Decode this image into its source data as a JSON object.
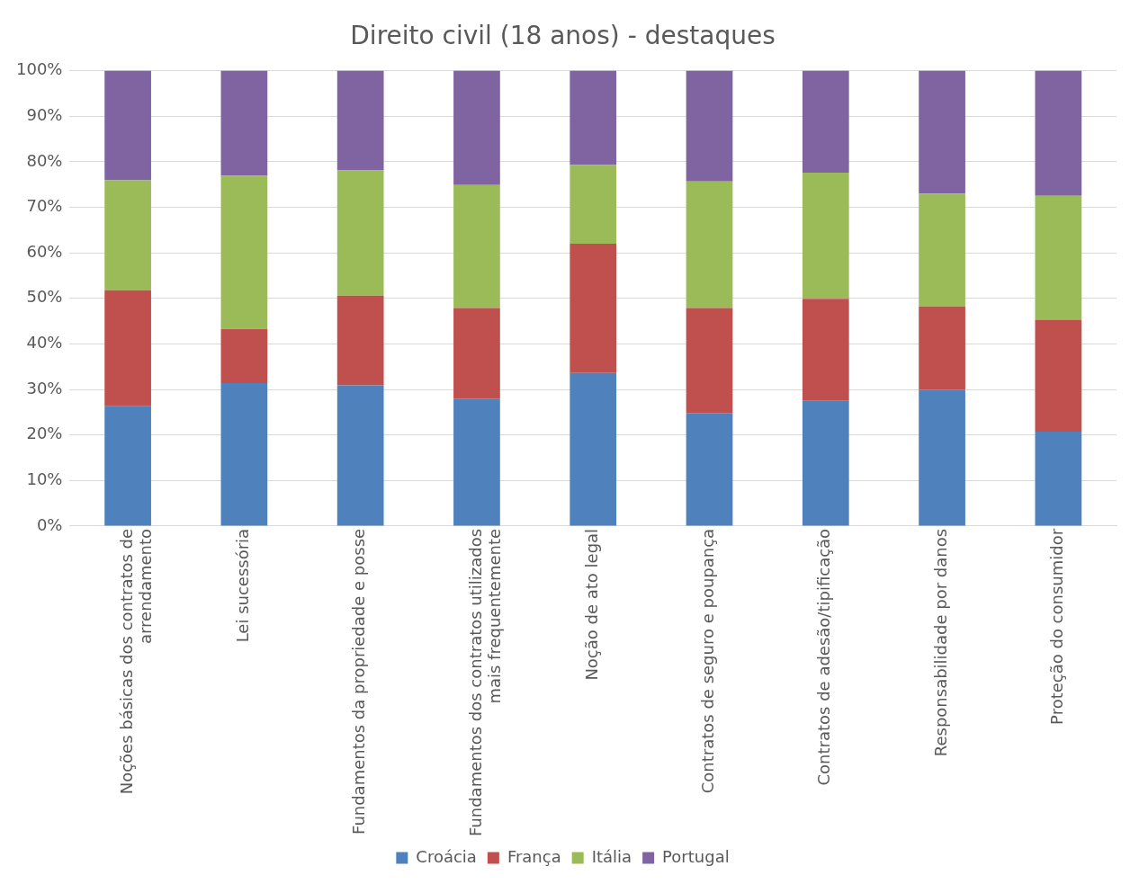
{
  "chart_data": {
    "type": "bar",
    "title": "Direito civil (18 anos) - destaques",
    "categories": [
      "Noções básicas dos contratos de arrendamento",
      "Lei sucessória",
      "Fundamentos da propriedade e posse",
      "Fundamentos dos contratos utilizados mais frequentemente",
      "Noção de ato legal",
      "Contratos de seguro e poupança",
      "Contratos de adesão/tipificação",
      "Responsabilidade por danos",
      "Proteção do consumidor"
    ],
    "series": [
      {
        "name": "Croácia",
        "color": "#4f81bd",
        "values": [
          26.3,
          31.4,
          30.9,
          28,
          33.6,
          24.8,
          27.5,
          29.9,
          20.7
        ]
      },
      {
        "name": "França",
        "color": "#c0504d",
        "values": [
          25.5,
          11.9,
          19.7,
          19.9,
          28.4,
          23.1,
          22.4,
          18.3,
          24.6
        ]
      },
      {
        "name": "Itália",
        "color": "#9bbb59",
        "values": [
          24.1,
          33.6,
          27.5,
          27,
          17.3,
          27.8,
          27.7,
          24.8,
          27.2
        ]
      },
      {
        "name": "Portugal",
        "color": "#8064a2",
        "values": [
          24.1,
          23.1,
          21.9,
          25.1,
          20.7,
          24.3,
          22.4,
          27,
          27.5
        ]
      }
    ],
    "stacked": true,
    "ylim": [
      0,
      100
    ],
    "yticks": [
      {
        "value": 0,
        "label": "0%"
      },
      {
        "value": 10,
        "label": "10%"
      },
      {
        "value": 20,
        "label": "20%"
      },
      {
        "value": 30,
        "label": "30%"
      },
      {
        "value": 40,
        "label": "40%"
      },
      {
        "value": 50,
        "label": "50%"
      },
      {
        "value": 60,
        "label": "60%"
      },
      {
        "value": 70,
        "label": "70%"
      },
      {
        "value": 80,
        "label": "80%"
      },
      {
        "value": 90,
        "label": "90%"
      },
      {
        "value": 100,
        "label": "100%"
      }
    ],
    "grid": "y",
    "legend": "bottom"
  }
}
